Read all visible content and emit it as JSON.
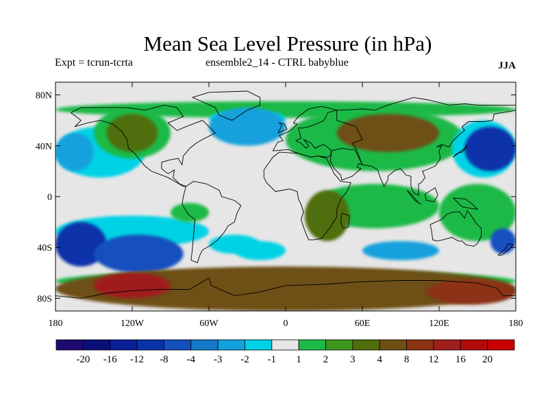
{
  "title": "Mean Sea Level Pressure (in hPa)",
  "subtitle_left": "Expt = tcrun-tcrta",
  "subtitle_center": "ensemble2_14 - CTRL babyblue",
  "season": "JJA",
  "chart_data": {
    "type": "heatmap",
    "projection": "cylindrical-equidistant",
    "xlim": [
      -180,
      180
    ],
    "ylim": [
      -90,
      90
    ],
    "x_ticks": [
      "180",
      "120W",
      "60W",
      "0",
      "60E",
      "120E",
      "180"
    ],
    "x_tick_values": [
      -180,
      -120,
      -60,
      0,
      60,
      120,
      180
    ],
    "y_ticks": [
      "80N",
      "40N",
      "0",
      "40S",
      "80S"
    ],
    "y_tick_values": [
      80,
      40,
      0,
      -40,
      -80
    ],
    "colorbar": {
      "labels": [
        "-20",
        "-16",
        "-12",
        "-8",
        "-4",
        "-3",
        "-2",
        "-1",
        "1",
        "2",
        "3",
        "4",
        "8",
        "12",
        "16",
        "20"
      ],
      "colors": [
        "#1e0a6e",
        "#0a0f78",
        "#0a1e96",
        "#0a32aa",
        "#1450be",
        "#1478c8",
        "#14a0dc",
        "#00d2e6",
        "#e6e6e6",
        "#1eb946",
        "#3c961e",
        "#506e0a",
        "#6e5014",
        "#8c3214",
        "#a01e1e",
        "#b40a0a",
        "#c80000"
      ]
    },
    "regions": [
      {
        "lon_range": [
          -180,
          -150
        ],
        "lat_range": [
          20,
          50
        ],
        "level": "-2"
      },
      {
        "lon_range": [
          -180,
          -140
        ],
        "lat_range": [
          -55,
          -20
        ],
        "level": "-8"
      },
      {
        "lon_range": [
          -150,
          -80
        ],
        "lat_range": [
          -60,
          -30
        ],
        "level": "-4"
      },
      {
        "lon_range": [
          -60,
          0
        ],
        "lat_range": [
          40,
          70
        ],
        "level": "-2"
      },
      {
        "lon_range": [
          -40,
          0
        ],
        "lat_range": [
          -50,
          -35
        ],
        "level": "-1"
      },
      {
        "lon_range": [
          140,
          180
        ],
        "lat_range": [
          20,
          55
        ],
        "level": "-8"
      },
      {
        "lon_range": [
          60,
          120
        ],
        "lat_range": [
          -50,
          -35
        ],
        "level": "-2"
      },
      {
        "lon_range": [
          160,
          180
        ],
        "lat_range": [
          -45,
          -25
        ],
        "level": "-4"
      },
      {
        "lon_range": [
          -140,
          -100
        ],
        "lat_range": [
          35,
          65
        ],
        "level": "3"
      },
      {
        "lon_range": [
          40,
          120
        ],
        "lat_range": [
          35,
          65
        ],
        "level": "4"
      },
      {
        "lon_range": [
          15,
          50
        ],
        "lat_range": [
          -35,
          5
        ],
        "level": "3"
      },
      {
        "lon_range": [
          -180,
          180
        ],
        "lat_range": [
          -90,
          -55
        ],
        "level": "4"
      },
      {
        "lon_range": [
          -150,
          -90
        ],
        "lat_range": [
          -80,
          -60
        ],
        "level": "12"
      },
      {
        "lon_range": [
          110,
          180
        ],
        "lat_range": [
          -85,
          -65
        ],
        "level": "8"
      }
    ]
  }
}
